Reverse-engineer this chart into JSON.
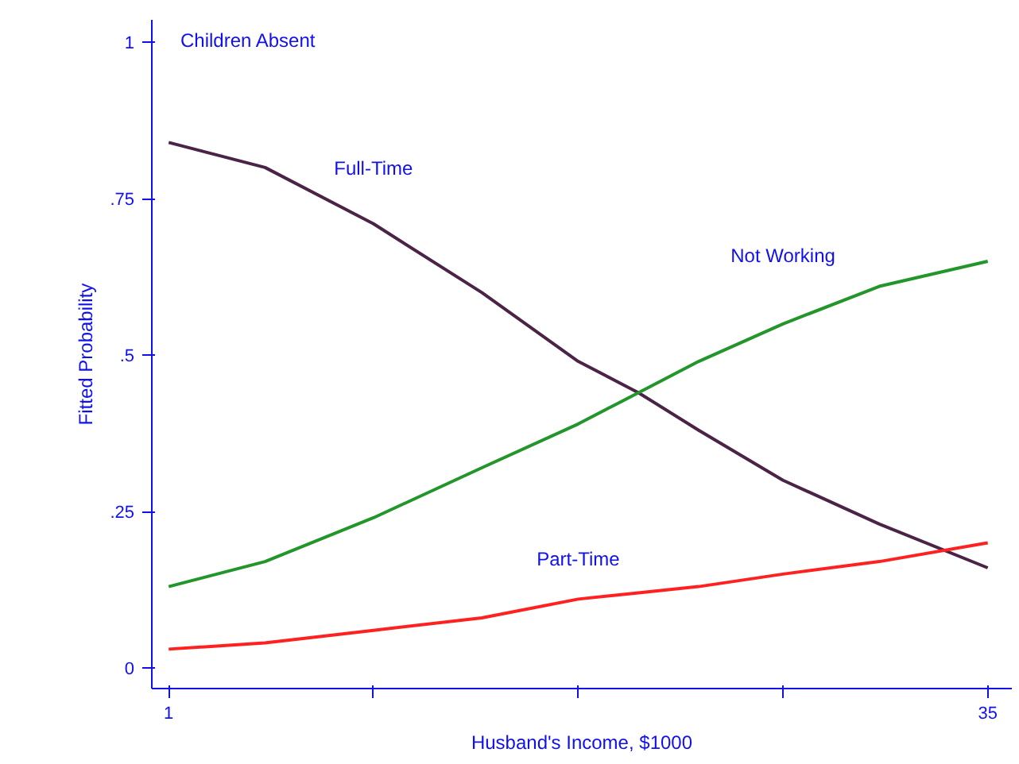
{
  "chart_data": {
    "type": "line",
    "title": "Children Absent",
    "xlabel": "Husband's Income, $1000",
    "ylabel": "Fitted Probability",
    "x": [
      1,
      5,
      9.5,
      14,
      18,
      20.5,
      23,
      26.5,
      30.5,
      35
    ],
    "series": [
      {
        "name": "Full-Time",
        "color": "#4b2346",
        "values": [
          0.84,
          0.8,
          0.71,
          0.6,
          0.49,
          0.44,
          0.38,
          0.3,
          0.23,
          0.16
        ]
      },
      {
        "name": "Not Working",
        "color": "#22962a",
        "values": [
          0.13,
          0.17,
          0.24,
          0.32,
          0.39,
          0.44,
          0.49,
          0.55,
          0.61,
          0.65
        ]
      },
      {
        "name": "Part-Time",
        "color": "#ff2020",
        "values": [
          0.03,
          0.04,
          0.06,
          0.08,
          0.11,
          0.12,
          0.13,
          0.15,
          0.17,
          0.2
        ]
      }
    ],
    "xlim": [
      0.3,
      36
    ],
    "ylim": [
      -0.033,
      1.036
    ],
    "xticks": [
      1,
      {
        "value": 9.5,
        "label": null
      },
      {
        "value": 18,
        "label": null
      },
      {
        "value": 26.5,
        "label": null
      },
      35
    ],
    "yticks": [
      0,
      {
        "value": 0.25,
        "label": ".25"
      },
      {
        "value": 0.5,
        "label": ".5"
      },
      {
        "value": 0.75,
        "label": ".75"
      },
      1
    ],
    "grid": false,
    "marker": "none",
    "line_style": "solid"
  }
}
